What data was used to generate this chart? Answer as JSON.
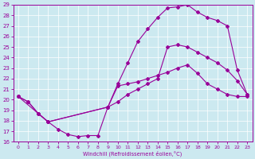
{
  "xlabel": "Windchill (Refroidissement éolien,°C)",
  "xlim": [
    -0.5,
    23.5
  ],
  "ylim": [
    16,
    29
  ],
  "xticks": [
    0,
    1,
    2,
    3,
    4,
    5,
    6,
    7,
    8,
    9,
    10,
    11,
    12,
    13,
    14,
    15,
    16,
    17,
    18,
    19,
    20,
    21,
    22,
    23
  ],
  "yticks": [
    16,
    17,
    18,
    19,
    20,
    21,
    22,
    23,
    24,
    25,
    26,
    27,
    28,
    29
  ],
  "bg_color": "#cce9f0",
  "line_color": "#990099",
  "grid_color": "#ffffff",
  "line1_x": [
    0,
    1,
    2,
    3,
    4,
    5,
    6,
    7,
    8,
    9,
    10,
    11,
    12,
    13,
    14,
    15,
    16,
    17,
    18,
    19,
    20,
    21,
    22,
    23
  ],
  "line1_y": [
    20.3,
    19.8,
    18.7,
    17.9,
    17.2,
    16.7,
    16.5,
    16.6,
    16.6,
    19.3,
    21.3,
    21.5,
    21.7,
    22.0,
    22.3,
    22.6,
    23.0,
    23.3,
    22.5,
    21.5,
    21.0,
    20.5,
    20.3,
    20.3
  ],
  "line2_x": [
    0,
    1,
    2,
    3,
    9,
    10,
    11,
    12,
    13,
    14,
    15,
    16,
    17,
    18,
    19,
    20,
    21,
    22,
    23
  ],
  "line2_y": [
    20.3,
    19.8,
    18.7,
    17.9,
    19.3,
    21.5,
    23.5,
    25.5,
    26.7,
    27.8,
    28.7,
    28.8,
    29.0,
    28.3,
    27.8,
    27.5,
    27.0,
    22.8,
    20.5
  ],
  "line3_x": [
    0,
    2,
    3,
    9,
    10,
    11,
    12,
    13,
    14,
    15,
    16,
    17,
    18,
    19,
    20,
    21,
    22,
    23
  ],
  "line3_y": [
    20.3,
    18.7,
    17.9,
    19.3,
    19.8,
    20.5,
    21.0,
    21.5,
    22.0,
    25.0,
    25.2,
    25.0,
    24.5,
    24.0,
    23.5,
    22.8,
    21.8,
    20.5
  ]
}
